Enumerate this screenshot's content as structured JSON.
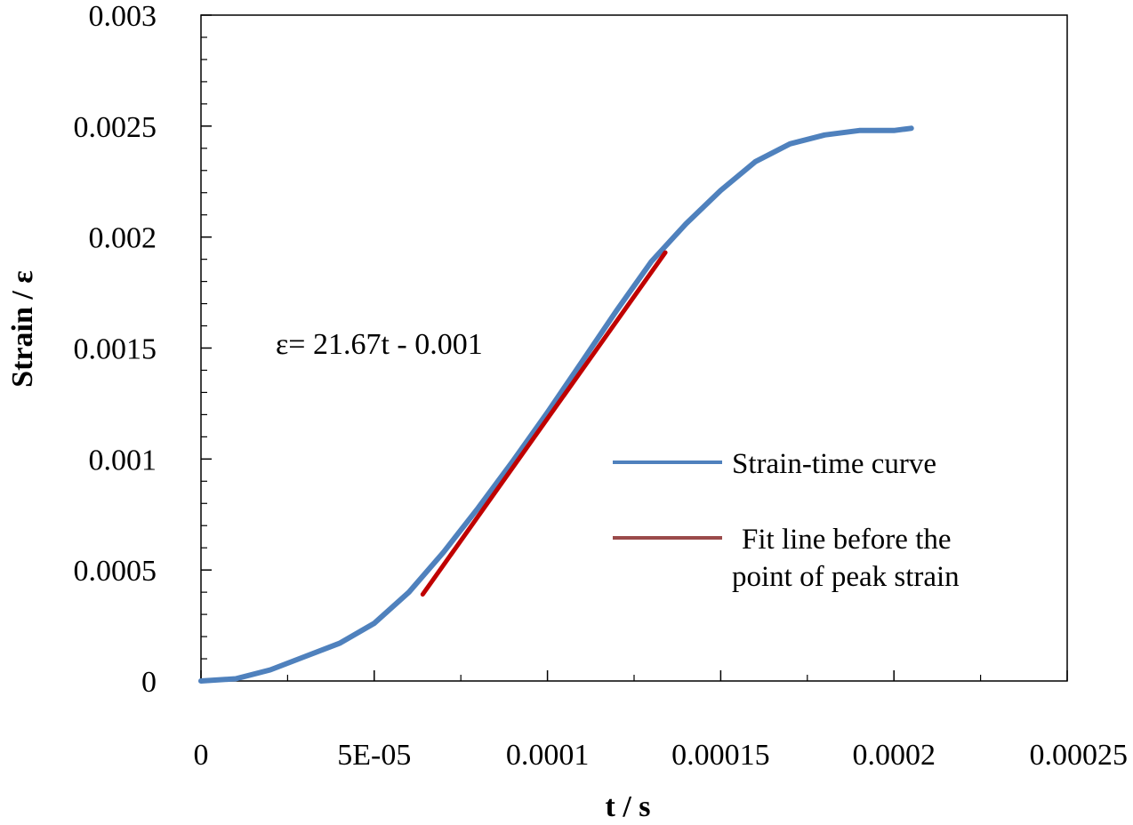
{
  "chart_data": {
    "type": "line",
    "title": "",
    "xlabel": "t / s",
    "ylabel": "Strain / ε",
    "xlim": [
      0,
      0.00025
    ],
    "ylim": [
      0,
      0.003
    ],
    "x_ticks": [
      0,
      5e-05,
      0.0001,
      0.00015,
      0.0002,
      0.00025
    ],
    "x_tick_labels": [
      "0",
      "5E-05",
      "0.0001",
      "0.00015",
      "0.0002",
      "0.00025"
    ],
    "y_ticks": [
      0,
      0.0005,
      0.001,
      0.0015,
      0.002,
      0.0025,
      0.003
    ],
    "y_tick_labels": [
      "0",
      "0.0005",
      "0.001",
      "0.0015",
      "0.002",
      "0.0025",
      "0.003"
    ],
    "grid": false,
    "legend_position": "right",
    "series": [
      {
        "name": "Strain-time curve",
        "color": "#4f81bd",
        "x": [
          0,
          1e-05,
          2e-05,
          3e-05,
          4e-05,
          5e-05,
          6e-05,
          7e-05,
          8e-05,
          9e-05,
          0.0001,
          0.00011,
          0.00012,
          0.00013,
          0.00014,
          0.00015,
          0.00016,
          0.00017,
          0.00018,
          0.00019,
          0.0002,
          0.000205
        ],
        "y": [
          0,
          1e-05,
          5e-05,
          0.00011,
          0.00017,
          0.00026,
          0.0004,
          0.00058,
          0.00078,
          0.00099,
          0.00121,
          0.00144,
          0.00167,
          0.00189,
          0.00206,
          0.00221,
          0.00234,
          0.00242,
          0.00246,
          0.00248,
          0.00248,
          0.00249
        ]
      },
      {
        "name": "Fit line before the point of peak strain",
        "color": "#c00000",
        "x": [
          6.4e-05,
          0.000134
        ],
        "y": [
          0.00039,
          0.00193
        ]
      }
    ],
    "annotations": [
      {
        "text": "ε= 21.67t - 0.001"
      }
    ]
  }
}
